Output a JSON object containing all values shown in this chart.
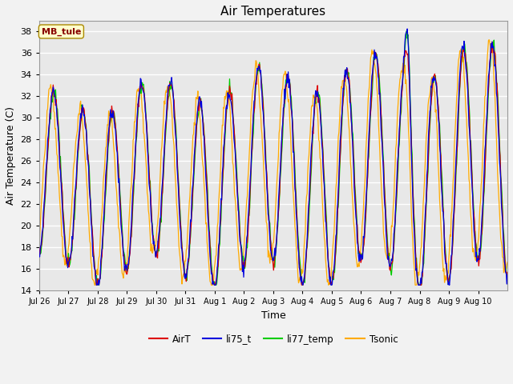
{
  "title": "Air Temperatures",
  "ylabel": "Air Temperature (C)",
  "xlabel": "Time",
  "annotation": "MB_tule",
  "ylim": [
    14,
    39
  ],
  "yticks": [
    14,
    16,
    18,
    20,
    22,
    24,
    26,
    28,
    30,
    32,
    34,
    36,
    38
  ],
  "xtick_labels": [
    "Jul 26",
    "Jul 27",
    "Jul 28",
    "Jul 29",
    "Jul 30",
    "Jul 31",
    "Aug 1",
    "Aug 2",
    "Aug 3",
    "Aug 4",
    "Aug 5",
    "Aug 6",
    "Aug 7",
    "Aug 8",
    "Aug 9",
    "Aug 10"
  ],
  "series_colors": {
    "AirT": "#dd0000",
    "li75_t": "#0000dd",
    "li77_temp": "#00cc00",
    "Tsonic": "#ffaa00"
  },
  "bg_color": "#e8e8e8",
  "grid_color": "#ffffff",
  "fig_bg": "#f2f2f2",
  "title_fontsize": 11,
  "axis_label_fontsize": 9,
  "tick_fontsize": 8,
  "n_days": 16,
  "pts_per_day": 48
}
